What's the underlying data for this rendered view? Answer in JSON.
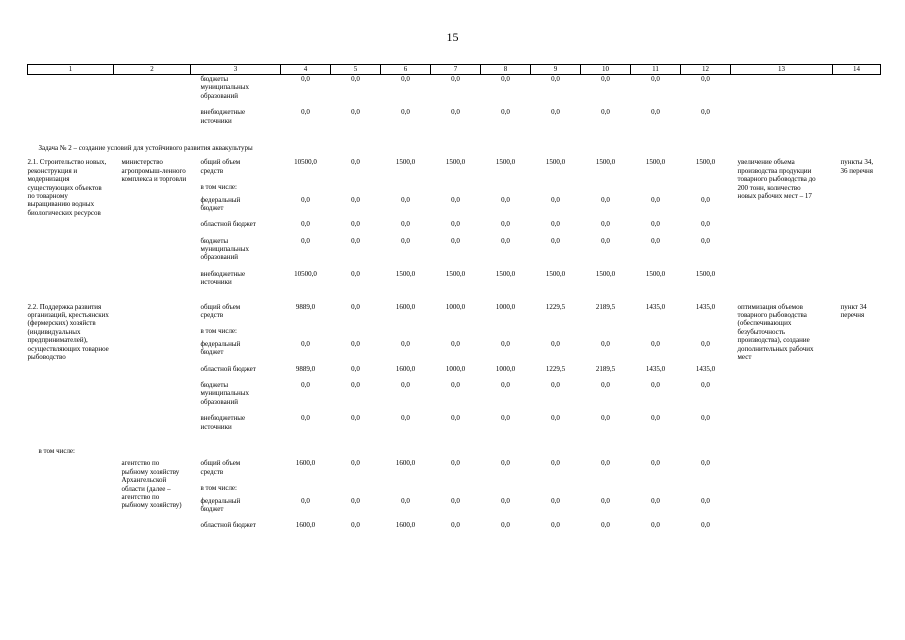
{
  "page": {
    "number": "15"
  },
  "table": {
    "header_cols": [
      "1",
      "2",
      "3",
      "4",
      "5",
      "6",
      "7",
      "8",
      "9",
      "10",
      "11",
      "12",
      "13",
      "14"
    ],
    "sections": [
      {
        "type": "rows",
        "rows": [
          {
            "c3": "бюджеты муниципальных образований",
            "vals": [
              "0,0",
              "0,0",
              "0,0",
              "0,0",
              "0,0",
              "0,0",
              "0,0",
              "0,0",
              "0,0"
            ]
          },
          {
            "c3": "внебюджетные источники",
            "vals": [
              "0,0",
              "0,0",
              "0,0",
              "0,0",
              "0,0",
              "0,0",
              "0,0",
              "0,0",
              "0,0"
            ],
            "end": true
          }
        ]
      },
      {
        "type": "task",
        "text": "Задача № 2 – создание условий для устойчивого развития аквакультуры"
      },
      {
        "type": "block",
        "c1": "2.1. Строительство новых, реконструкция и модернизация существующих объектов по товарному выращиванию водных биологических ресурсов",
        "c2": "министерство агропромыш-ленного комплекса и торговли",
        "c13": "увеличение объема производства продукции товарного рыбоводства до 200 тонн, количество новых рабочих мест – 17",
        "c14": "пункты 34, 36 перечня",
        "rows": [
          {
            "c3": "общий объем средств",
            "vals": [
              "10500,0",
              "0,0",
              "1500,0",
              "1500,0",
              "1500,0",
              "1500,0",
              "1500,0",
              "1500,0",
              "1500,0"
            ]
          },
          {
            "c3": "в том числе:"
          },
          {
            "c3": "федеральный бюджет",
            "vals": [
              "0,0",
              "0,0",
              "0,0",
              "0,0",
              "0,0",
              "0,0",
              "0,0",
              "0,0",
              "0,0"
            ]
          },
          {
            "c3": "областной бюджет",
            "vals": [
              "0,0",
              "0,0",
              "0,0",
              "0,0",
              "0,0",
              "0,0",
              "0,0",
              "0,0",
              "0,0"
            ]
          },
          {
            "c3": "бюджеты муниципальных образований",
            "vals": [
              "0,0",
              "0,0",
              "0,0",
              "0,0",
              "0,0",
              "0,0",
              "0,0",
              "0,0",
              "0,0"
            ]
          },
          {
            "c3": "внебюджетные источники",
            "vals": [
              "10500,0",
              "0,0",
              "1500,0",
              "1500,0",
              "1500,0",
              "1500,0",
              "1500,0",
              "1500,0",
              "1500,0"
            ],
            "end": true
          }
        ]
      },
      {
        "type": "block",
        "c1": "2.2. Поддержка развития организаций, крестьянских (фермерских) хозяйств (индивидуальных предпринимателей), осуществляющих товарное рыбоводство",
        "c2": "",
        "c13": "оптимизация объемов товарного рыбоводства (обеспечивающих безубыточность производства), создание дополнительных рабочих мест",
        "c14": "пункт 34 перечня",
        "rows": [
          {
            "c3": "общий объем средств",
            "vals": [
              "9889,0",
              "0,0",
              "1600,0",
              "1000,0",
              "1000,0",
              "1229,5",
              "2189,5",
              "1435,0",
              "1435,0"
            ]
          },
          {
            "c3": "в том числе:"
          },
          {
            "c3": "федеральный бюджет",
            "vals": [
              "0,0",
              "0,0",
              "0,0",
              "0,0",
              "0,0",
              "0,0",
              "0,0",
              "0,0",
              "0,0"
            ]
          },
          {
            "c3": "областной бюджет",
            "vals": [
              "9889,0",
              "0,0",
              "1600,0",
              "1000,0",
              "1000,0",
              "1229,5",
              "2189,5",
              "1435,0",
              "1435,0"
            ]
          },
          {
            "c3": "бюджеты муниципальных образований",
            "vals": [
              "0,0",
              "0,0",
              "0,0",
              "0,0",
              "0,0",
              "0,0",
              "0,0",
              "0,0",
              "0,0"
            ]
          },
          {
            "c3": "внебюджетные источники",
            "vals": [
              "0,0",
              "0,0",
              "0,0",
              "0,0",
              "0,0",
              "0,0",
              "0,0",
              "0,0",
              "0,0"
            ],
            "end": true
          }
        ]
      },
      {
        "type": "c1row",
        "text": "в том числе:"
      },
      {
        "type": "block",
        "c1": "",
        "c2": "агентство по рыбному хозяйству Архангельской области (далее – агентство по рыбному хозяйству)",
        "c13": "",
        "c14": "",
        "rows": [
          {
            "c3": "общий объем средств",
            "vals": [
              "1600,0",
              "0,0",
              "1600,0",
              "0,0",
              "0,0",
              "0,0",
              "0,0",
              "0,0",
              "0,0"
            ]
          },
          {
            "c3": "в том числе:"
          },
          {
            "c3": "федеральный бюджет",
            "vals": [
              "0,0",
              "0,0",
              "0,0",
              "0,0",
              "0,0",
              "0,0",
              "0,0",
              "0,0",
              "0,0"
            ]
          },
          {
            "c3": "областной бюджет",
            "vals": [
              "1600,0",
              "0,0",
              "1600,0",
              "0,0",
              "0,0",
              "0,0",
              "0,0",
              "0,0",
              "0,0"
            ]
          }
        ]
      }
    ]
  }
}
